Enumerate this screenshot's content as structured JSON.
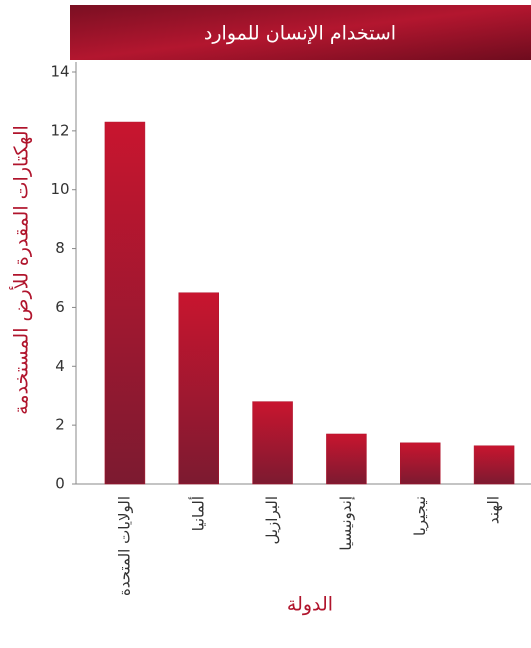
{
  "chart_data": {
    "type": "bar",
    "title": "استخدام الإنسان للموارد",
    "y_label": "الهكتارات المقدرة للأرض المستخدمة",
    "x_label": "الدولة",
    "categories": [
      "الولايات المتحدة",
      "ألمانيا",
      "البرازيل",
      "إندونيسيا",
      "نيجيريا",
      "الهند"
    ],
    "values": [
      12.3,
      6.5,
      2.8,
      1.7,
      1.4,
      1.3
    ],
    "color": "#b0142c",
    "ylim": [
      0,
      14
    ],
    "yticks": [
      0,
      2,
      4,
      6,
      8,
      10,
      12,
      14
    ],
    "grid": false
  }
}
